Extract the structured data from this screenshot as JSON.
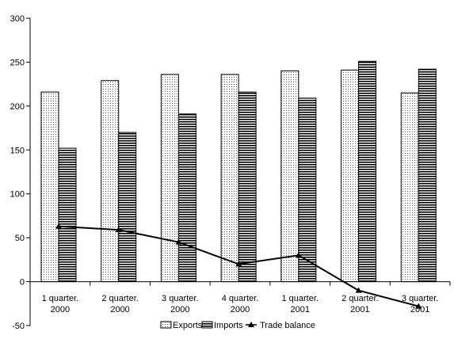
{
  "chart_data": {
    "type": "bar",
    "categories": [
      "1 quarter. 2000",
      "2 quarter. 2000",
      "3 quarter. 2000",
      "4 quarter. 2000",
      "1 quarter. 2001",
      "2 quarter. 2001",
      "3 quarter. 2001"
    ],
    "category_labels": [
      [
        "1 quarter.",
        "2000"
      ],
      [
        "2 quarter.",
        "2000"
      ],
      [
        "3 quarter.",
        "2000"
      ],
      [
        "4 quarter.",
        "2000"
      ],
      [
        "1 quarter.",
        "2001"
      ],
      [
        "2 quarter.",
        "2001"
      ],
      [
        "3 quarter.",
        "2001"
      ]
    ],
    "series": [
      {
        "name": "Exports",
        "kind": "bar",
        "pattern": "dots",
        "values": [
          216,
          229,
          236,
          236,
          240,
          241,
          215
        ]
      },
      {
        "name": "Imports",
        "kind": "bar",
        "pattern": "horizontal-lines",
        "values": [
          152,
          170,
          191,
          216,
          209,
          251,
          242
        ]
      },
      {
        "name": "Trade balance",
        "kind": "line",
        "marker": "triangle",
        "values": [
          63,
          59,
          45,
          20,
          30,
          -10,
          -28
        ]
      }
    ],
    "ylim": [
      -50,
      300
    ],
    "yticks": [
      -50,
      0,
      50,
      100,
      150,
      200,
      250,
      300
    ],
    "grid": false,
    "legend": "bottom",
    "title": "",
    "xlabel": "",
    "ylabel": ""
  }
}
